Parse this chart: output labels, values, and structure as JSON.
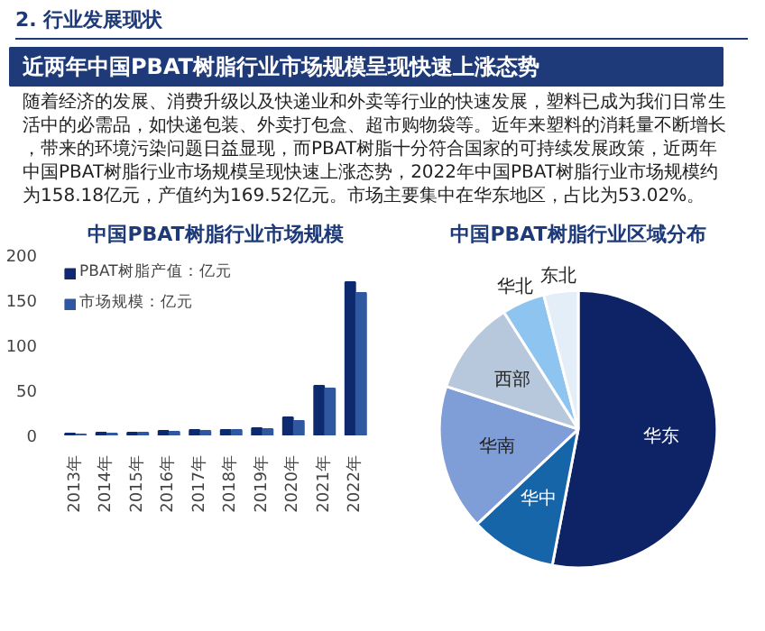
{
  "chart_data": [
    {
      "type": "other",
      "subtitle": "2. 行业发展现状",
      "title": "近两年中国PBAT树脂行业市场规模呈现快速上涨态势",
      "annotations": [
        "随着经济的发展、消费升级以及快递业和外卖等行业的快速发展，塑料已成为我们日常生活中的必需品，如快递包装、外卖打包盒、超市购物袋等。近年来塑料的消耗量不断增长，带来的环境污染问题日益显现，而PBAT树脂十分符合国家的可持续发展政策，近两年中国PBAT树脂行业市场规模呈现快速上涨态势，2022年中国PBAT树脂行业市场规模约为158.18亿元，产值约为169.52亿元。市场主要集中在华东地区，占比为53.02%。"
      ]
    },
    {
      "type": "bar",
      "title": "中国PBAT树脂行业市场规模",
      "categories": [
        "2013年",
        "2014年",
        "2015年",
        "2016年",
        "2017年",
        "2018年",
        "2019年",
        "2020年",
        "2021年",
        "2022年"
      ],
      "ylim": [
        0,
        200
      ],
      "yticks": [
        0,
        50,
        100,
        150,
        200
      ],
      "grid": false,
      "legend": "top left",
      "series": [
        {
          "name": "PBAT树脂产值：亿元",
          "color": "#0e2a6e",
          "values": [
            2,
            3,
            3,
            5,
            6,
            6,
            8,
            20,
            55,
            170
          ]
        },
        {
          "name": "市场规模：亿元",
          "color": "#2f58a0",
          "values": [
            1,
            2,
            3,
            4,
            5,
            6,
            7,
            16,
            52,
            158
          ]
        }
      ]
    },
    {
      "type": "pie",
      "title": "中国PBAT树脂行业区域分布",
      "categories": [
        "华东",
        "华中",
        "华南",
        "西部",
        "华北",
        "东北"
      ],
      "values": [
        53,
        10,
        17,
        11,
        5,
        4
      ],
      "colors": [
        "#0d2366",
        "#1565a8",
        "#7f9dd6",
        "#b8c8dc",
        "#8ec5f0",
        "#e4eef8"
      ]
    }
  ]
}
